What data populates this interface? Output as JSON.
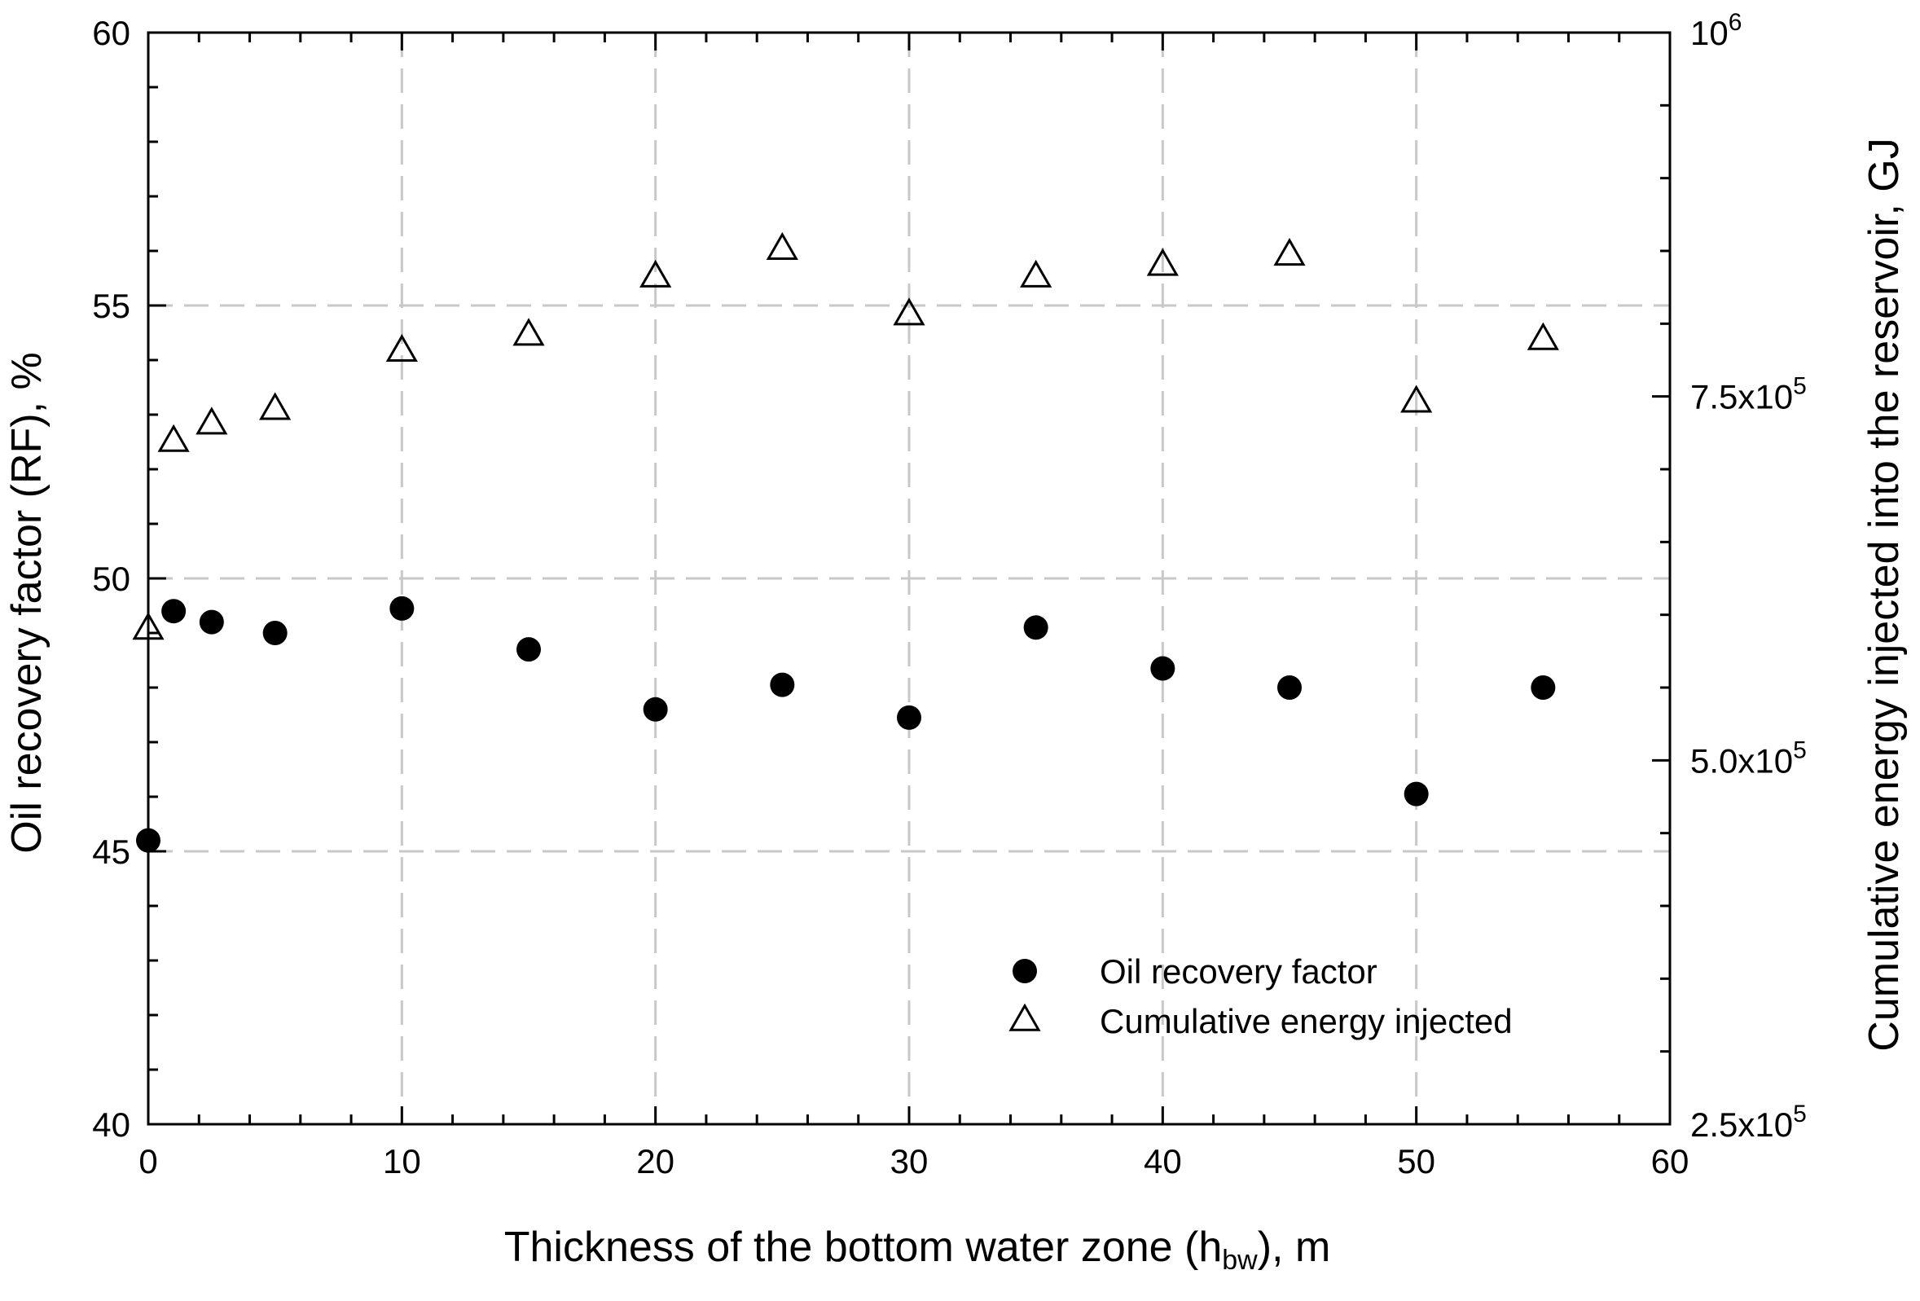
{
  "chart_data": {
    "type": "scatter",
    "title": "",
    "xlabel": {
      "main": "Thickness of the bottom water zone (h",
      "sub": "bw",
      "tail": "), m"
    },
    "ylabel_left": "Oil recovery factor (RF), %",
    "ylabel_right": "Cumulative energy injected into the reservoir, GJ",
    "xlim": [
      0,
      60
    ],
    "ylim_left": [
      40,
      60
    ],
    "ylim_right": [
      250000,
      1000000
    ],
    "x_ticks": [
      0,
      10,
      20,
      30,
      40,
      50,
      60
    ],
    "x_tick_labels": [
      "0",
      "10",
      "20",
      "30",
      "40",
      "50",
      "60"
    ],
    "y_left_ticks": [
      40,
      45,
      50,
      55,
      60
    ],
    "y_left_tick_labels": [
      "40",
      "45",
      "50",
      "55",
      "60"
    ],
    "y_right_ticks": [
      {
        "value": 250000,
        "mantissa": "2.5x10",
        "exp": "5"
      },
      {
        "value": 500000,
        "mantissa": "5.0x10",
        "exp": "5"
      },
      {
        "value": 750000,
        "mantissa": "7.5x10",
        "exp": "5"
      },
      {
        "value": 1000000,
        "mantissa": "10",
        "exp": "6"
      }
    ],
    "grid": true,
    "legend_position": "bottom-right",
    "series": [
      {
        "name": "Oil recovery factor",
        "marker": "filled-circle",
        "axis": "left",
        "x": [
          0,
          1,
          2.5,
          5,
          10,
          15,
          20,
          25,
          30,
          35,
          40,
          45,
          50,
          55
        ],
        "y": [
          45.2,
          49.4,
          49.2,
          49.0,
          49.45,
          48.7,
          47.6,
          48.05,
          47.45,
          49.1,
          48.35,
          48.0,
          46.05,
          48.0
        ]
      },
      {
        "name": "Cumulative energy injected",
        "marker": "open-triangle",
        "axis": "right",
        "x": [
          0,
          1,
          2.5,
          5,
          10,
          15,
          20,
          25,
          30,
          35,
          40,
          45,
          50,
          55
        ],
        "y": [
          590000,
          719000,
          731000,
          741000,
          781000,
          792000,
          832000,
          851000,
          806000,
          832000,
          840000,
          847000,
          746000,
          789000
        ]
      }
    ]
  }
}
